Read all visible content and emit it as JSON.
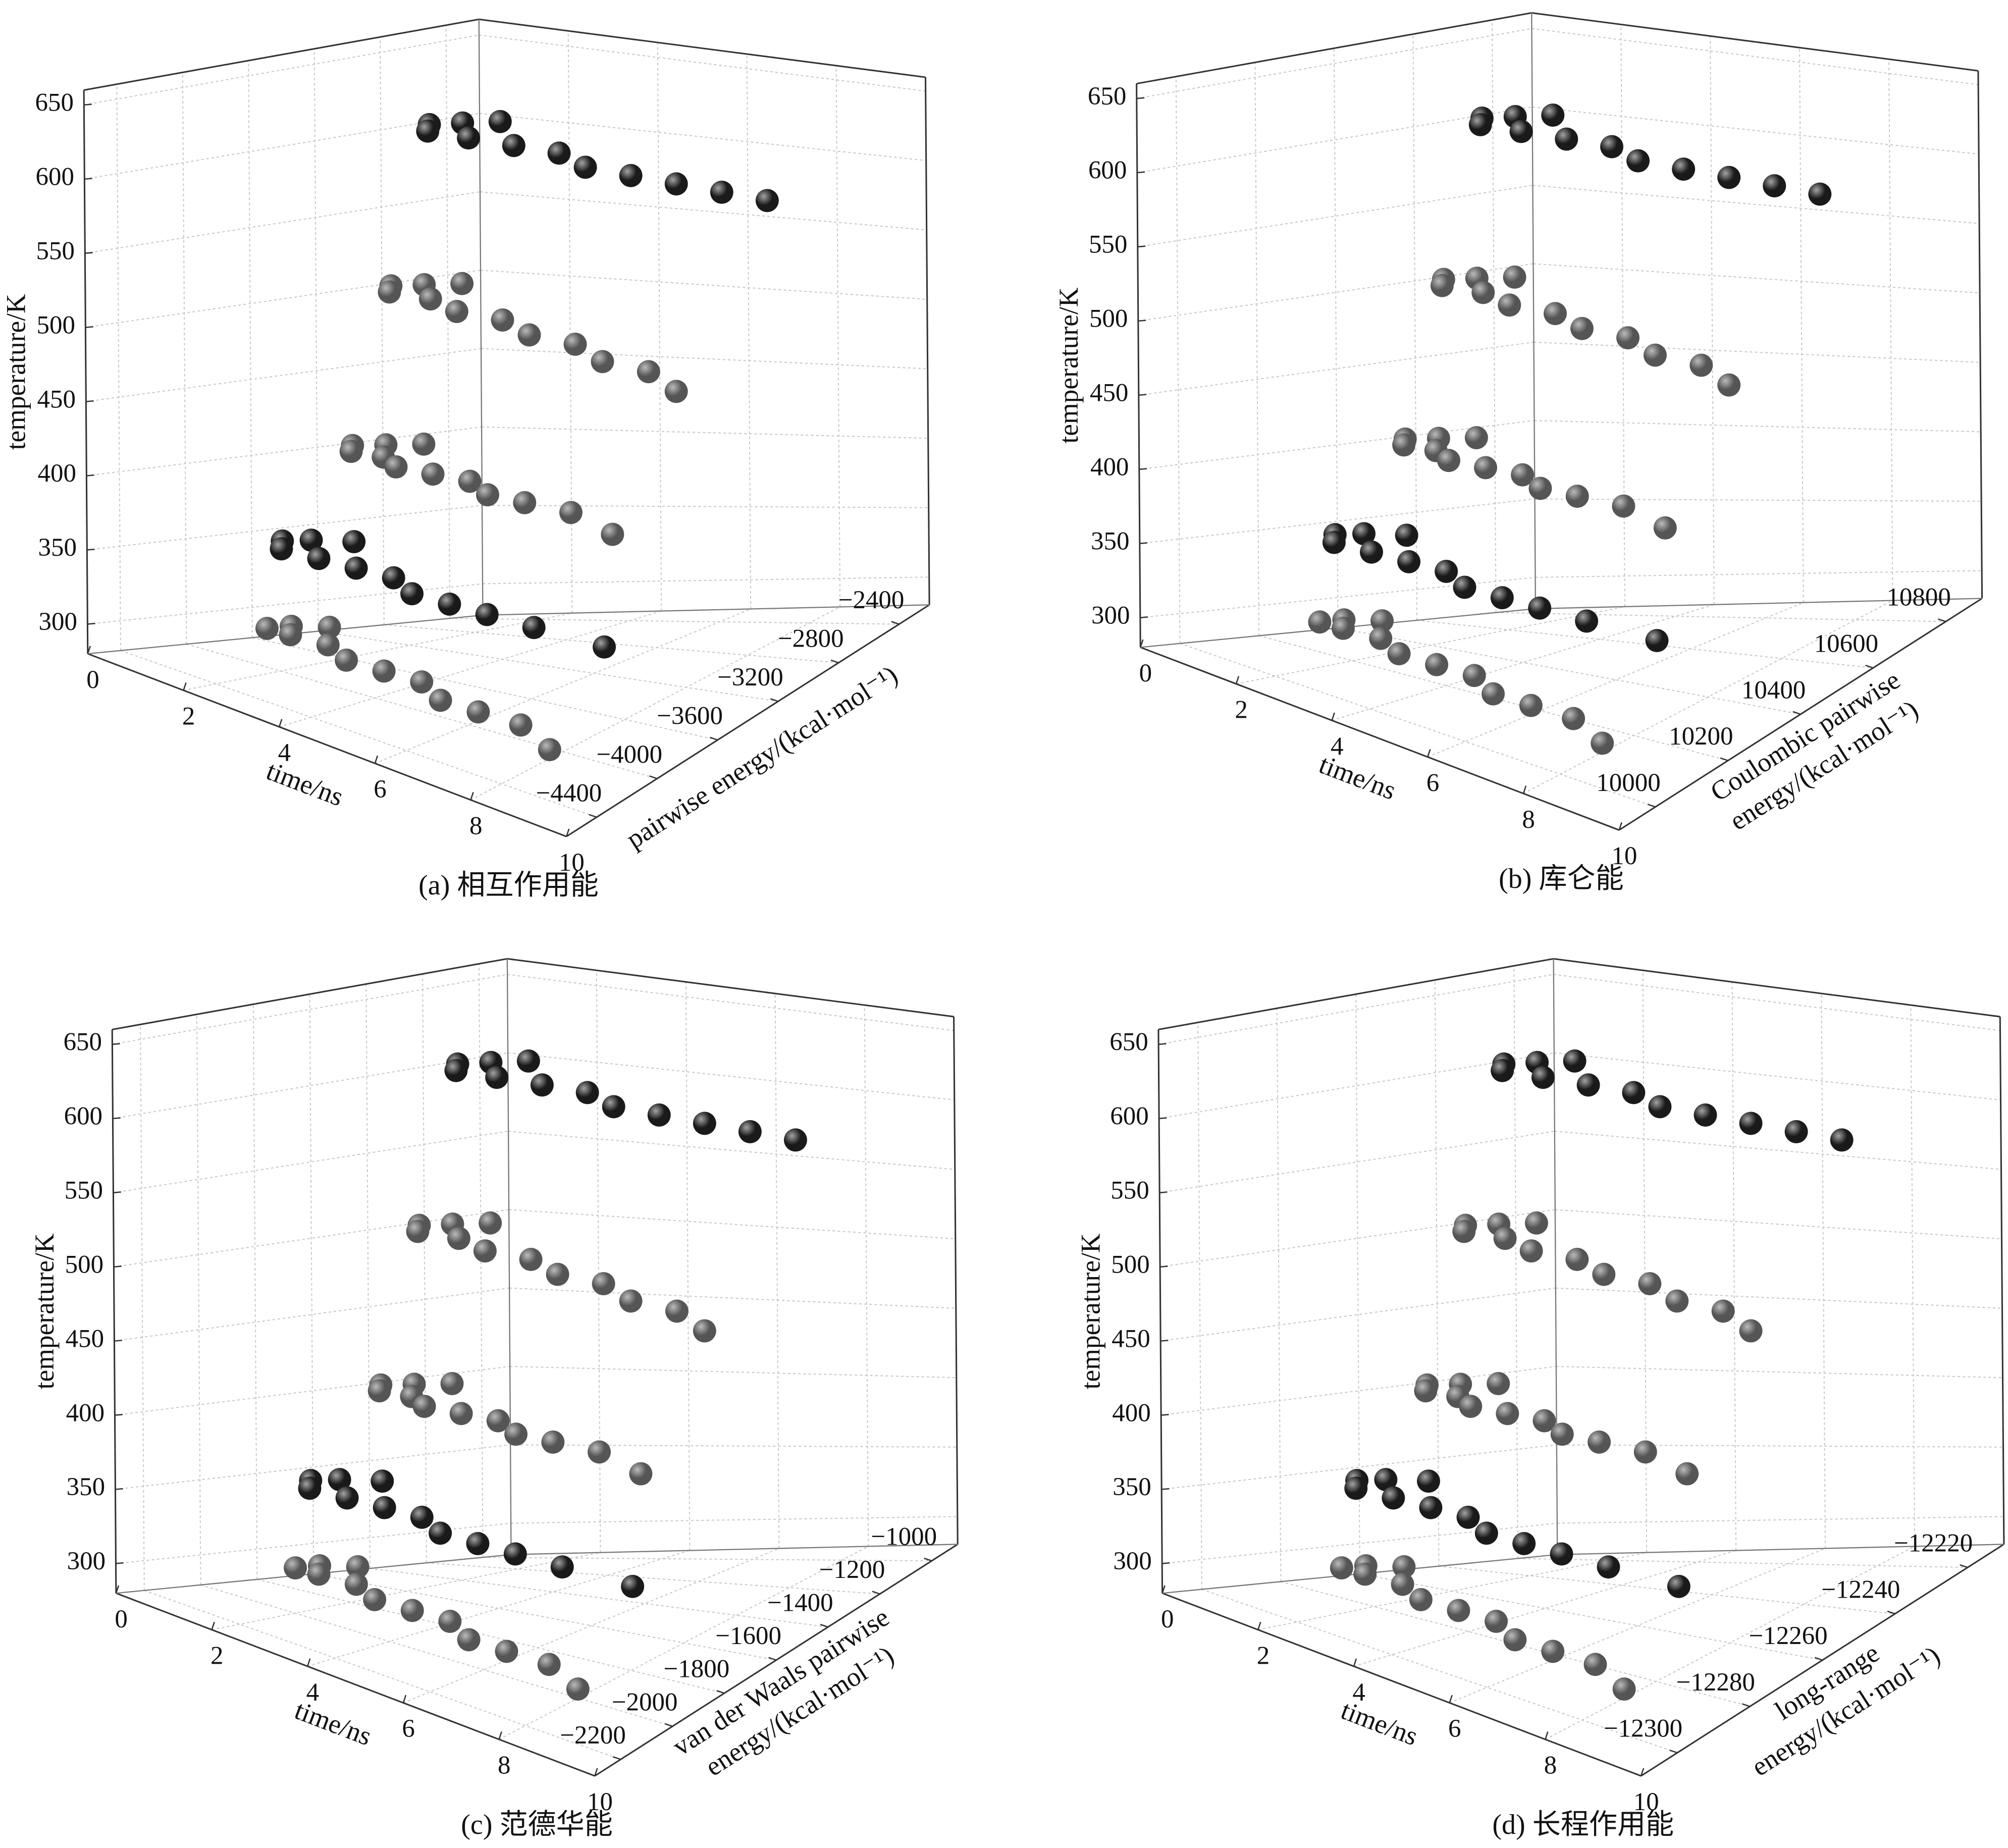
{
  "chart_data": [
    {
      "type": "scatter3d",
      "caption": "(a) 相互作用能",
      "xlabel": "time/ns",
      "ylabel": [
        "pairwise energy/(kcal·mol⁻¹)"
      ],
      "zlabel": "temperature/K",
      "xlim": [
        0,
        10
      ],
      "xticks": [
        0,
        2,
        4,
        6,
        8,
        10
      ],
      "ylim": [
        -4600,
        -2200
      ],
      "yticks": [
        {
          "value": -4400,
          "label": "−4400"
        },
        {
          "value": -4000,
          "label": "−4000"
        },
        {
          "value": -3600,
          "label": "−3600"
        },
        {
          "value": -3200,
          "label": "−3200"
        },
        {
          "value": -2800,
          "label": "−2800"
        },
        {
          "value": -2400,
          "label": "−2400"
        }
      ],
      "zlim": [
        280,
        660
      ],
      "zticks": [
        300,
        350,
        400,
        450,
        500,
        550,
        600,
        650
      ],
      "grid": true,
      "series": [
        {
          "color": "#1a1a1a",
          "z": 600,
          "x": [
            0.9,
            0.5,
            0.2,
            0.6,
            1.5,
            2.5,
            3.5,
            4.5,
            5.5,
            6.5,
            7.5,
            8.5
          ],
          "y": [
            -2320,
            -2440,
            -2560,
            -2680,
            -2680,
            -2680,
            -2680,
            -2800,
            -2800,
            -2800,
            -2800,
            -2800
          ]
        },
        {
          "color": "#555555",
          "z": 500,
          "x": [
            0.9,
            0.5,
            0.2,
            0.6,
            1.5,
            2.5,
            3.5,
            4.5,
            5.5,
            6.5,
            7.5,
            8.5
          ],
          "y": [
            -2560,
            -2680,
            -2800,
            -2920,
            -2920,
            -3040,
            -3040,
            -3160,
            -3160,
            -3280,
            -3280,
            -3400
          ]
        },
        {
          "color": "#555555",
          "z": 400,
          "x": [
            0.9,
            0.5,
            0.2,
            0.6,
            1.3,
            2.0,
            2.8,
            3.6,
            4.4,
            5.2,
            6.2,
            7.5
          ],
          "y": [
            -2800,
            -2920,
            -3040,
            -3160,
            -3160,
            -3280,
            -3280,
            -3280,
            -3400,
            -3400,
            -3400,
            -3520
          ]
        },
        {
          "color": "#1a1a1a",
          "z": 350,
          "x": [
            1.5,
            1.0,
            0.8,
            1.2,
            2.0,
            2.8,
            3.6,
            4.4,
            5.2,
            6.0,
            7.0,
            8.5
          ],
          "y": [
            -3400,
            -3520,
            -3640,
            -3760,
            -3760,
            -3760,
            -3760,
            -3880,
            -3880,
            -3880,
            -3880,
            -3880
          ]
        },
        {
          "color": "#555555",
          "z": 300,
          "x": [
            1.8,
            1.4,
            1.3,
            1.8,
            2.6,
            3.4,
            4.2,
            5.0,
            5.8,
            6.6,
            7.5,
            8.5
          ],
          "y": [
            -3640,
            -3760,
            -3880,
            -3880,
            -3880,
            -4000,
            -4000,
            -4000,
            -4120,
            -4120,
            -4120,
            -4240
          ]
        }
      ]
    },
    {
      "type": "scatter3d",
      "caption": "(b) 库仑能",
      "xlabel": "time/ns",
      "ylabel": [
        "Coulombic pairwise",
        "energy/(kcal·mol⁻¹)"
      ],
      "zlabel": "temperature/K",
      "xlim": [
        0,
        10
      ],
      "xticks": [
        0,
        2,
        4,
        6,
        8,
        10
      ],
      "ylim": [
        9900,
        10900
      ],
      "yticks": [
        10000,
        10200,
        10400,
        10600,
        10800
      ],
      "zlim": [
        280,
        660
      ],
      "zticks": [
        300,
        350,
        400,
        450,
        500,
        550,
        600,
        650
      ],
      "grid": true,
      "series": [
        {
          "color": "#1a1a1a",
          "z": 600,
          "x": [
            0.9,
            0.5,
            0.2,
            0.6,
            1.5,
            2.5,
            3.5,
            4.5,
            5.5,
            6.5,
            7.5,
            8.5
          ],
          "y": [
            10850,
            10800,
            10750,
            10700,
            10700,
            10700,
            10700,
            10650,
            10650,
            10650,
            10650,
            10650
          ]
        },
        {
          "color": "#555555",
          "z": 500,
          "x": [
            0.9,
            0.5,
            0.2,
            0.6,
            1.5,
            2.5,
            3.5,
            4.5,
            5.5,
            6.5,
            7.5,
            8.5
          ],
          "y": [
            10750,
            10700,
            10650,
            10600,
            10600,
            10550,
            10550,
            10500,
            10500,
            10450,
            10450,
            10400
          ]
        },
        {
          "color": "#555555",
          "z": 400,
          "x": [
            0.9,
            0.5,
            0.2,
            0.6,
            1.3,
            2.0,
            2.8,
            3.6,
            4.4,
            5.2,
            6.2,
            7.5
          ],
          "y": [
            10650,
            10600,
            10550,
            10500,
            10500,
            10450,
            10450,
            10450,
            10400,
            10400,
            10400,
            10350
          ]
        },
        {
          "color": "#1a1a1a",
          "z": 350,
          "x": [
            1.5,
            1.0,
            0.8,
            1.2,
            2.0,
            2.8,
            3.6,
            4.4,
            5.2,
            6.0,
            7.0,
            8.5
          ],
          "y": [
            10400,
            10350,
            10300,
            10250,
            10250,
            10250,
            10250,
            10200,
            10200,
            10200,
            10200,
            10200
          ]
        },
        {
          "color": "#555555",
          "z": 300,
          "x": [
            1.8,
            1.4,
            1.3,
            1.8,
            2.6,
            3.4,
            4.2,
            5.0,
            5.8,
            6.6,
            7.5,
            8.5
          ],
          "y": [
            10300,
            10250,
            10200,
            10200,
            10200,
            10150,
            10150,
            10150,
            10100,
            10100,
            10100,
            10050
          ]
        }
      ]
    },
    {
      "type": "scatter3d",
      "caption": "(c) 范德华能",
      "xlabel": "time/ns",
      "ylabel": [
        "van der Waals pairwise",
        "energy/(kcal·mol⁻¹)"
      ],
      "zlabel": "temperature/K",
      "xlim": [
        0,
        10
      ],
      "xticks": [
        0,
        2,
        4,
        6,
        8,
        10
      ],
      "ylim": [
        -2300,
        -900
      ],
      "yticks": [
        {
          "value": -2200,
          "label": "−2200"
        },
        {
          "value": -2000,
          "label": "−2000"
        },
        {
          "value": -1800,
          "label": "−1800"
        },
        {
          "value": -1600,
          "label": "−1600"
        },
        {
          "value": -1400,
          "label": "−1400"
        },
        {
          "value": -1200,
          "label": "−1200"
        },
        {
          "value": -1000,
          "label": "−1000"
        }
      ],
      "zlim": [
        280,
        660
      ],
      "zticks": [
        300,
        350,
        400,
        450,
        500,
        550,
        600,
        650
      ],
      "grid": true,
      "series": [
        {
          "color": "#1a1a1a",
          "z": 600,
          "x": [
            0.9,
            0.5,
            0.2,
            0.6,
            1.5,
            2.5,
            3.5,
            4.5,
            5.5,
            6.5,
            7.5,
            8.5
          ],
          "y": [
            -970,
            -1040,
            -1110,
            -1180,
            -1180,
            -1180,
            -1180,
            -1250,
            -1250,
            -1250,
            -1250,
            -1250
          ]
        },
        {
          "color": "#555555",
          "z": 500,
          "x": [
            0.9,
            0.5,
            0.2,
            0.6,
            1.5,
            2.5,
            3.5,
            4.5,
            5.5,
            6.5,
            7.5,
            8.5
          ],
          "y": [
            -1110,
            -1180,
            -1250,
            -1320,
            -1320,
            -1390,
            -1390,
            -1460,
            -1460,
            -1530,
            -1530,
            -1600
          ]
        },
        {
          "color": "#555555",
          "z": 400,
          "x": [
            0.9,
            0.5,
            0.2,
            0.6,
            1.3,
            2.0,
            2.8,
            3.6,
            4.4,
            5.2,
            6.2,
            7.5
          ],
          "y": [
            -1250,
            -1320,
            -1390,
            -1460,
            -1460,
            -1530,
            -1530,
            -1530,
            -1600,
            -1600,
            -1600,
            -1670
          ]
        },
        {
          "color": "#1a1a1a",
          "z": 350,
          "x": [
            1.5,
            1.0,
            0.8,
            1.2,
            2.0,
            2.8,
            3.6,
            4.4,
            5.2,
            6.0,
            7.0,
            8.5
          ],
          "y": [
            -1600,
            -1670,
            -1740,
            -1810,
            -1810,
            -1810,
            -1810,
            -1880,
            -1880,
            -1880,
            -1880,
            -1880
          ]
        },
        {
          "color": "#555555",
          "z": 300,
          "x": [
            1.8,
            1.4,
            1.3,
            1.8,
            2.6,
            3.4,
            4.2,
            5.0,
            5.8,
            6.6,
            7.5,
            8.5
          ],
          "y": [
            -1740,
            -1810,
            -1880,
            -1880,
            -1880,
            -1950,
            -1950,
            -1950,
            -2020,
            -2020,
            -2020,
            -2090
          ]
        }
      ]
    },
    {
      "type": "scatter3d",
      "caption": "(d) 长程作用能",
      "xlabel": "time/ns",
      "ylabel": [
        "long-range",
        "energy/(kcal·mol⁻¹)"
      ],
      "zlabel": "temperature/K",
      "xlim": [
        0,
        10
      ],
      "xticks": [
        0,
        2,
        4,
        6,
        8,
        10
      ],
      "ylim": [
        -12310,
        -12210
      ],
      "yticks": [
        {
          "value": -12300,
          "label": "−12300"
        },
        {
          "value": -12280,
          "label": "−12280"
        },
        {
          "value": -12260,
          "label": "−12260"
        },
        {
          "value": -12240,
          "label": "−12240"
        },
        {
          "value": -12220,
          "label": "−12220"
        }
      ],
      "zlim": [
        280,
        660
      ],
      "zticks": [
        300,
        350,
        400,
        450,
        500,
        550,
        600,
        650
      ],
      "grid": true,
      "series": [
        {
          "color": "#1a1a1a",
          "z": 600,
          "x": [
            0.9,
            0.5,
            0.2,
            0.6,
            1.5,
            2.5,
            3.5,
            4.5,
            5.5,
            6.5,
            7.5,
            8.5
          ],
          "y": [
            -12215,
            -12220,
            -12225,
            -12230,
            -12230,
            -12230,
            -12230,
            -12235,
            -12235,
            -12235,
            -12235,
            -12235
          ]
        },
        {
          "color": "#555555",
          "z": 500,
          "x": [
            0.9,
            0.5,
            0.2,
            0.6,
            1.5,
            2.5,
            3.5,
            4.5,
            5.5,
            6.5,
            7.5,
            8.5
          ],
          "y": [
            -12225,
            -12230,
            -12235,
            -12240,
            -12240,
            -12245,
            -12245,
            -12250,
            -12250,
            -12255,
            -12255,
            -12260
          ]
        },
        {
          "color": "#555555",
          "z": 400,
          "x": [
            0.9,
            0.5,
            0.2,
            0.6,
            1.3,
            2.0,
            2.8,
            3.6,
            4.4,
            5.2,
            6.2,
            7.5
          ],
          "y": [
            -12235,
            -12240,
            -12245,
            -12250,
            -12250,
            -12255,
            -12255,
            -12255,
            -12260,
            -12260,
            -12260,
            -12265
          ]
        },
        {
          "color": "#1a1a1a",
          "z": 350,
          "x": [
            1.5,
            1.0,
            0.8,
            1.2,
            2.0,
            2.8,
            3.6,
            4.4,
            5.2,
            6.0,
            7.0,
            8.5
          ],
          "y": [
            -12260,
            -12265,
            -12270,
            -12275,
            -12275,
            -12275,
            -12275,
            -12280,
            -12280,
            -12280,
            -12280,
            -12280
          ]
        },
        {
          "color": "#555555",
          "z": 300,
          "x": [
            1.8,
            1.4,
            1.3,
            1.8,
            2.6,
            3.4,
            4.2,
            5.0,
            5.8,
            6.6,
            7.5,
            8.5
          ],
          "y": [
            -12270,
            -12275,
            -12280,
            -12280,
            -12280,
            -12285,
            -12285,
            -12285,
            -12290,
            -12290,
            -12290,
            -12295
          ]
        }
      ]
    }
  ]
}
